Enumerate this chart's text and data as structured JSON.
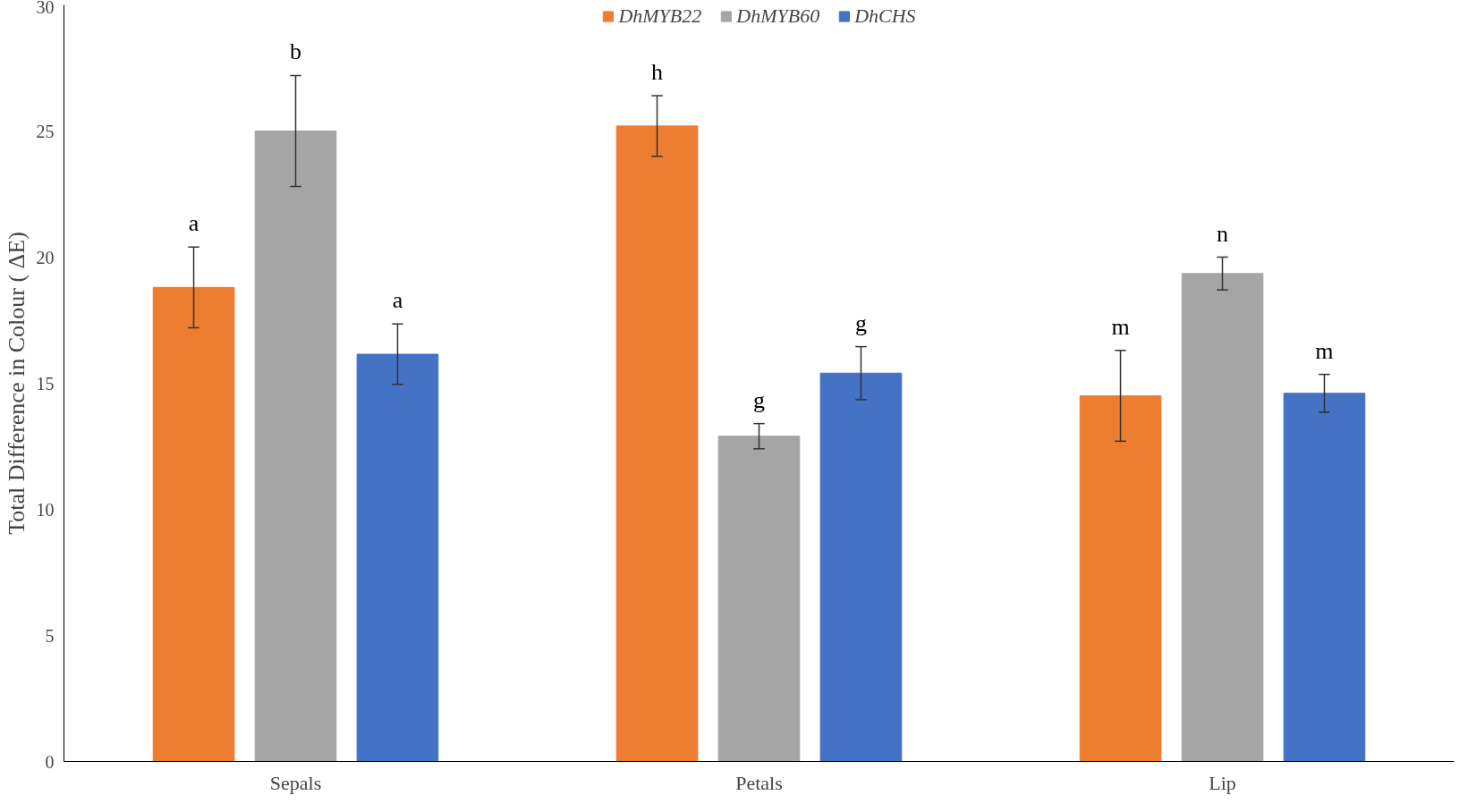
{
  "chart_data": {
    "type": "bar",
    "ylabel": "Total Difference in Colour ( ΔE)",
    "categories": [
      "Sepals",
      "Petals",
      "Lip"
    ],
    "series": [
      {
        "name": "DhMYB22",
        "color": "#ed7d31",
        "values": [
          18.8,
          25.2,
          14.5
        ],
        "errors": [
          1.6,
          1.2,
          1.8
        ]
      },
      {
        "name": "DhMYB60",
        "color": "#a5a5a5",
        "values": [
          25.0,
          12.9,
          19.35
        ],
        "errors": [
          2.2,
          0.5,
          0.65
        ]
      },
      {
        "name": "DhCHS",
        "color": "#4472c4",
        "values": [
          16.15,
          15.4,
          14.6
        ],
        "errors": [
          1.2,
          1.05,
          0.75
        ]
      }
    ],
    "ylim": [
      0,
      30
    ],
    "yticks": [
      0,
      5,
      10,
      15,
      20,
      25,
      30
    ],
    "grid": false,
    "legend": "top",
    "annotations": [
      "a",
      "b",
      "a",
      "h",
      "g",
      "g",
      "m",
      "n",
      "m"
    ]
  }
}
